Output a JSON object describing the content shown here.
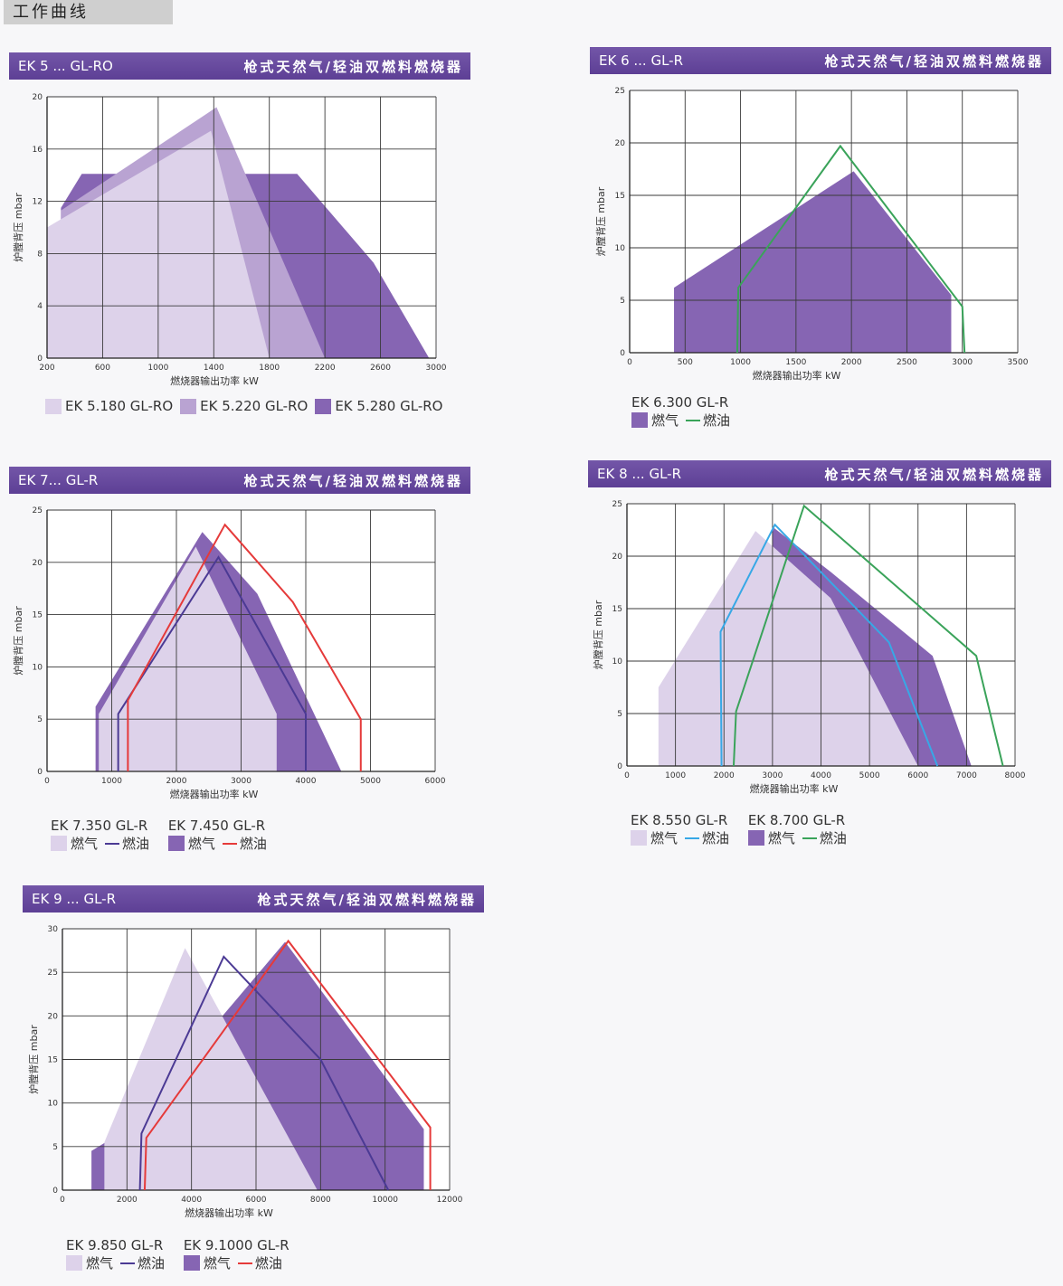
{
  "page_title": "工作曲线",
  "colors": {
    "light": "#ddd2ea",
    "mid": "#b9a3d2",
    "dark": "#8665b3",
    "green": "#3aa35a",
    "red": "#e53a3a",
    "navy": "#4b3a94",
    "blue": "#37a8e6"
  },
  "chart_data": [
    {
      "type": "area",
      "panel_model": "EK 5 ... GL-RO",
      "panel_desc": "枪式天然气/轻油双燃料燃烧器",
      "xlabel": "燃烧器输出功率  kW",
      "ylabel": "炉膛背压  mbar",
      "xlim": [
        200,
        3000
      ],
      "ylim": [
        0,
        20
      ],
      "xticks": [
        200,
        600,
        1000,
        1400,
        1800,
        2200,
        2600,
        3000
      ],
      "yticks": [
        0,
        4,
        8,
        12,
        16,
        20
      ],
      "series": [
        {
          "name": "EK 5.280 GL-RO",
          "kind": "fill",
          "color": "dark",
          "points": [
            [
              300,
              0
            ],
            [
              300,
              11.5
            ],
            [
              450,
              14.1
            ],
            [
              1300,
              14.1
            ],
            [
              2000,
              14.1
            ],
            [
              2550,
              7.3
            ],
            [
              2950,
              0
            ]
          ]
        },
        {
          "name": "EK 5.220 GL-RO",
          "kind": "fill",
          "color": "mid",
          "points": [
            [
              300,
              0
            ],
            [
              300,
              11.3
            ],
            [
              1420,
              19.2
            ],
            [
              2200,
              0
            ]
          ]
        },
        {
          "name": "EK 5.180 GL-RO",
          "kind": "fill",
          "color": "light",
          "points": [
            [
              200,
              0
            ],
            [
              200,
              10
            ],
            [
              1380,
              17.4
            ],
            [
              1800,
              0
            ]
          ]
        }
      ],
      "legend": [
        {
          "label": "EK 5.180 GL-RO",
          "color": "light"
        },
        {
          "label": "EK 5.220 GL-RO",
          "color": "mid"
        },
        {
          "label": "EK 5.280 GL-RO",
          "color": "dark"
        }
      ]
    },
    {
      "type": "area",
      "panel_model": "EK 6 ... GL-R",
      "panel_desc": "枪式天然气/轻油双燃料燃烧器",
      "xlabel": "燃烧器输出功率  kW",
      "ylabel": "炉膛背压  mbar",
      "xlim": [
        0,
        3500
      ],
      "ylim": [
        0,
        25
      ],
      "xticks": [
        0,
        500,
        1000,
        1500,
        2000,
        2500,
        3000,
        3500
      ],
      "yticks": [
        0,
        5,
        10,
        15,
        20,
        25
      ],
      "series": [
        {
          "name": "燃气",
          "kind": "fill",
          "color": "dark",
          "points": [
            [
              400,
              0
            ],
            [
              400,
              6.2
            ],
            [
              2020,
              17.3
            ],
            [
              2900,
              5.5
            ],
            [
              2900,
              0
            ]
          ]
        },
        {
          "name": "燃油",
          "kind": "line",
          "color": "green",
          "points": [
            [
              970,
              0
            ],
            [
              980,
              6.2
            ],
            [
              1900,
              19.7
            ],
            [
              3000,
              4.4
            ],
            [
              3020,
              0
            ]
          ]
        }
      ],
      "legend_groups": [
        {
          "title": "EK 6.300 GL-R",
          "gas": "燃气",
          "gas_color": "dark",
          "oil": "燃油",
          "oil_color": "green"
        }
      ]
    },
    {
      "type": "area",
      "panel_model": "EK 7... GL-R",
      "panel_desc": "枪式天然气/轻油双燃料燃烧器",
      "xlabel": "燃烧器输出功率  kW",
      "ylabel": "炉膛背压  mbar",
      "xlim": [
        0,
        6000
      ],
      "ylim": [
        0,
        25
      ],
      "xticks": [
        0,
        1000,
        2000,
        3000,
        4000,
        5000,
        6000
      ],
      "yticks": [
        0,
        5,
        10,
        15,
        20,
        25
      ],
      "series": [
        {
          "name": "EK 7.450 燃气",
          "kind": "fill",
          "color": "dark",
          "points": [
            [
              750,
              0
            ],
            [
              750,
              6.2
            ],
            [
              2400,
              22.9
            ],
            [
              3250,
              17
            ],
            [
              4550,
              0
            ]
          ]
        },
        {
          "name": "EK 7.350 燃气",
          "kind": "fill",
          "color": "light",
          "points": [
            [
              800,
              0
            ],
            [
              800,
              5.5
            ],
            [
              2300,
              21.5
            ],
            [
              3550,
              5.5
            ],
            [
              3550,
              0
            ]
          ]
        },
        {
          "name": "EK 7.350 燃油",
          "kind": "line",
          "color": "navy",
          "points": [
            [
              1100,
              0
            ],
            [
              1100,
              5.5
            ],
            [
              2650,
              20.5
            ],
            [
              4000,
              5.5
            ],
            [
              4000,
              0
            ]
          ]
        },
        {
          "name": "EK 7.450 燃油",
          "kind": "line",
          "color": "red",
          "points": [
            [
              1250,
              0
            ],
            [
              1250,
              6.8
            ],
            [
              2750,
              23.6
            ],
            [
              3800,
              16.2
            ],
            [
              4850,
              5
            ],
            [
              4850,
              0
            ]
          ]
        }
      ],
      "legend_groups": [
        {
          "title": "EK 7.350 GL-R",
          "gas": "燃气",
          "gas_color": "light",
          "oil": "燃油",
          "oil_color": "navy"
        },
        {
          "title": "EK 7.450 GL-R",
          "gas": "燃气",
          "gas_color": "dark",
          "oil": "燃油",
          "oil_color": "red"
        }
      ]
    },
    {
      "type": "area",
      "panel_model": "EK 8 ... GL-R",
      "panel_desc": "枪式天然气/轻油双燃料燃烧器",
      "xlabel": "燃烧器输出功率  kW",
      "ylabel": "炉膛背压  mbar",
      "xlim": [
        0,
        8000
      ],
      "ylim": [
        0,
        25
      ],
      "xticks": [
        0,
        1000,
        2000,
        3000,
        4000,
        5000,
        6000,
        7000,
        8000
      ],
      "yticks": [
        0,
        5,
        10,
        15,
        20,
        25
      ],
      "series": [
        {
          "name": "EK 8.700 燃气",
          "kind": "fill",
          "color": "dark",
          "points": [
            [
              3000,
              22.8
            ],
            [
              4200,
              18.5
            ],
            [
              6300,
              10.5
            ],
            [
              7100,
              0
            ],
            [
              3200,
              0
            ],
            [
              3000,
              15
            ]
          ]
        },
        {
          "name": "EK 8.550 燃气",
          "kind": "fill",
          "color": "light",
          "points": [
            [
              650,
              0
            ],
            [
              650,
              7.5
            ],
            [
              2650,
              22.4
            ],
            [
              4200,
              16
            ],
            [
              6000,
              0
            ]
          ]
        },
        {
          "name": "EK 8.550 燃油",
          "kind": "line",
          "color": "blue",
          "points": [
            [
              1950,
              0
            ],
            [
              1930,
              12.8
            ],
            [
              3050,
              23
            ],
            [
              5400,
              11.8
            ],
            [
              6400,
              0
            ]
          ]
        },
        {
          "name": "EK 8.700 燃油",
          "kind": "line",
          "color": "green",
          "points": [
            [
              2200,
              0
            ],
            [
              2250,
              5.2
            ],
            [
              3650,
              24.8
            ],
            [
              7200,
              10.5
            ],
            [
              7750,
              0
            ]
          ]
        }
      ],
      "legend_groups": [
        {
          "title": "EK 8.550 GL-R",
          "gas": "燃气",
          "gas_color": "light",
          "oil": "燃油",
          "oil_color": "blue"
        },
        {
          "title": "EK 8.700 GL-R",
          "gas": "燃气",
          "gas_color": "dark",
          "oil": "燃油",
          "oil_color": "green"
        }
      ]
    },
    {
      "type": "area",
      "panel_model": "EK 9 ... GL-R",
      "panel_desc": "枪式天然气/轻油双燃料燃烧器",
      "xlabel": "燃烧器输出功率  kW",
      "ylabel": "炉膛背压  mbar",
      "xlim": [
        0,
        12000
      ],
      "ylim": [
        0,
        30
      ],
      "xticks": [
        0,
        2000,
        4000,
        6000,
        8000,
        10000,
        12000
      ],
      "yticks": [
        0,
        5,
        10,
        15,
        20,
        25,
        30
      ],
      "series": [
        {
          "name": "EK 9.1000 燃气",
          "kind": "fill",
          "color": "dark",
          "points": [
            [
              900,
              0
            ],
            [
              900,
              4.5
            ],
            [
              2000,
              7
            ],
            [
              6900,
              28.5
            ],
            [
              11200,
              7
            ],
            [
              11200,
              0
            ]
          ]
        },
        {
          "name": "EK 9.850 燃气",
          "kind": "fill",
          "color": "light",
          "points": [
            [
              1300,
              0
            ],
            [
              1300,
              5.5
            ],
            [
              3800,
              27.8
            ],
            [
              7900,
              0
            ]
          ]
        },
        {
          "name": "EK 9.850 燃油",
          "kind": "line",
          "color": "navy",
          "points": [
            [
              2400,
              0
            ],
            [
              2450,
              6.5
            ],
            [
              5000,
              26.8
            ],
            [
              8000,
              15
            ],
            [
              10100,
              0
            ]
          ]
        },
        {
          "name": "EK 9.1000 燃油",
          "kind": "line",
          "color": "red",
          "points": [
            [
              2550,
              0
            ],
            [
              2600,
              6
            ],
            [
              7000,
              28.6
            ],
            [
              11400,
              7.2
            ],
            [
              11400,
              0
            ]
          ]
        }
      ],
      "legend_groups": [
        {
          "title": "EK 9.850 GL-R",
          "gas": "燃气",
          "gas_color": "light",
          "oil": "燃油",
          "oil_color": "navy"
        },
        {
          "title": "EK 9.1000 GL-R",
          "gas": "燃气",
          "gas_color": "dark",
          "oil": "燃油",
          "oil_color": "red"
        }
      ]
    }
  ]
}
